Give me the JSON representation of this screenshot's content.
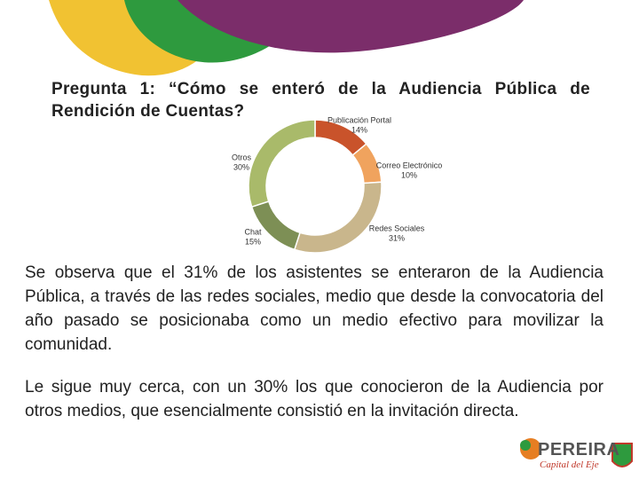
{
  "chart_data": {
    "type": "donut",
    "title": "Pregunta 1: “Cómo se enteró de la Audiencia Pública de Rendición de Cuentas?",
    "categories": [
      "Publicación Portal",
      "Correo Electrónico",
      "Redes Sociales",
      "Chat",
      "Otros"
    ],
    "values": [
      14,
      10,
      31,
      15,
      30
    ],
    "value_labels": [
      "14%",
      "10%",
      "31%",
      "15%",
      "30%"
    ],
    "colors": [
      "#c9532b",
      "#f0a35e",
      "#c9b68c",
      "#7d8f55",
      "#a9ba6a"
    ]
  },
  "paragraphs": [
    "Se observa que el 31% de los asistentes se enteraron de la Audiencia Pública, a través de las redes sociales, medio que desde la convocatoria del año pasado se posicionaba como un medio efectivo para movilizar la comunidad.",
    "Le sigue muy cerca, con un 30% los que conocieron de la Audiencia por otros medios, que esencialmente consistió en la invitación directa."
  ],
  "logo": {
    "name": "PEREIRA",
    "tagline": "Capital del Eje"
  }
}
